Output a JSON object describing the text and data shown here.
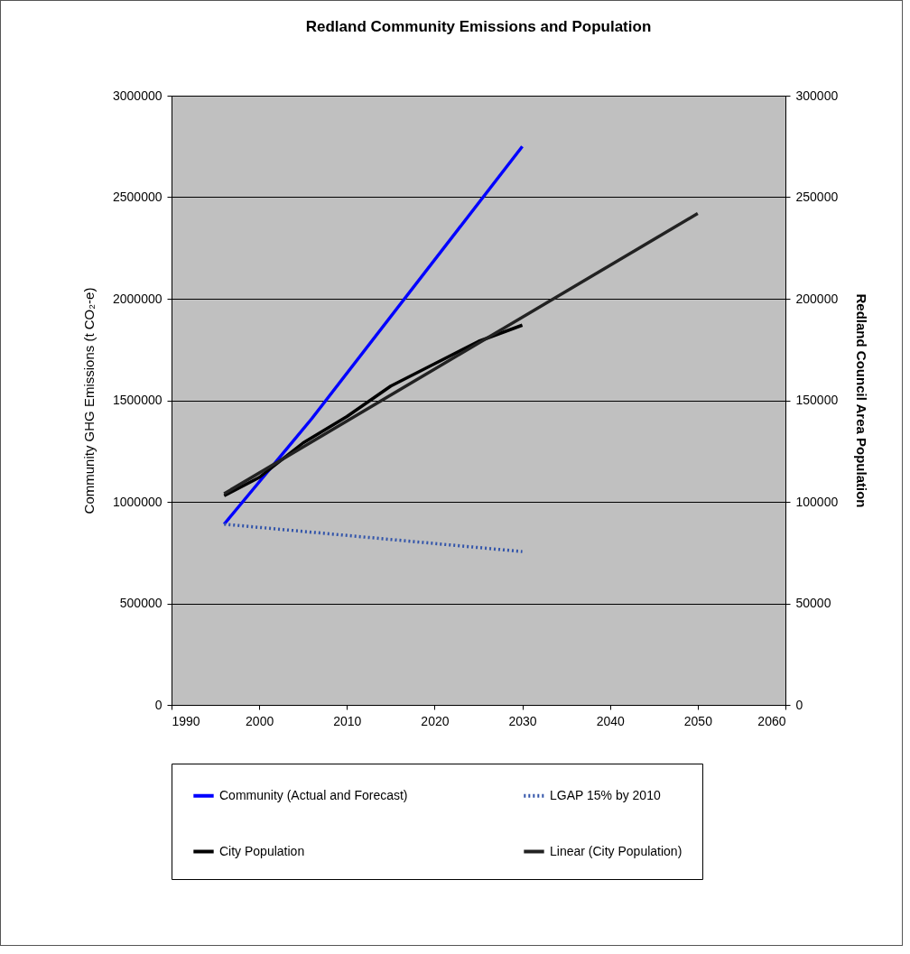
{
  "chart_data": {
    "type": "line",
    "title": "Redland Community Emissions and Population",
    "ylabel": "Community GHG Emissions (t CO₂-e)",
    "y2label": "Redland Council Area Population",
    "xlim": [
      1990,
      2060
    ],
    "xticks": [
      1990,
      2000,
      2010,
      2020,
      2030,
      2040,
      2050,
      2060
    ],
    "ylim": [
      0,
      3000000
    ],
    "yticks": [
      0,
      500000,
      1000000,
      1500000,
      2000000,
      2500000,
      3000000
    ],
    "y2lim": [
      0,
      300000
    ],
    "y2ticks": [
      0,
      50000,
      100000,
      150000,
      200000,
      250000,
      300000
    ],
    "grid": "y",
    "legend": "bottom",
    "marker": "none",
    "series": [
      {
        "name": "Community (Actual and Forecast)",
        "color": "#0000ff",
        "line_style": "solid",
        "x": [
          1996,
          2001,
          2006,
          2030
        ],
        "values": [
          890000,
          1150000,
          1410000,
          2750000
        ]
      },
      {
        "name": "LGAP 15% by 2010",
        "color": "#3355aa",
        "line_style": "dotted",
        "x": [
          1996,
          2030
        ],
        "values": [
          890000,
          755000
        ]
      },
      {
        "name": "City Population",
        "color": "#000000",
        "line_style": "solid",
        "axis": "y2",
        "x": [
          1996,
          2000,
          2005,
          2010,
          2015,
          2020,
          2025,
          2030
        ],
        "values": [
          103000,
          112000,
          129000,
          142000,
          157000,
          168000,
          179000,
          187000
        ]
      },
      {
        "name": "Linear (City Population)",
        "color": "#222222",
        "line_style": "solid",
        "axis": "y2",
        "x": [
          1996,
          2050
        ],
        "values": [
          104000,
          242000
        ]
      }
    ]
  }
}
